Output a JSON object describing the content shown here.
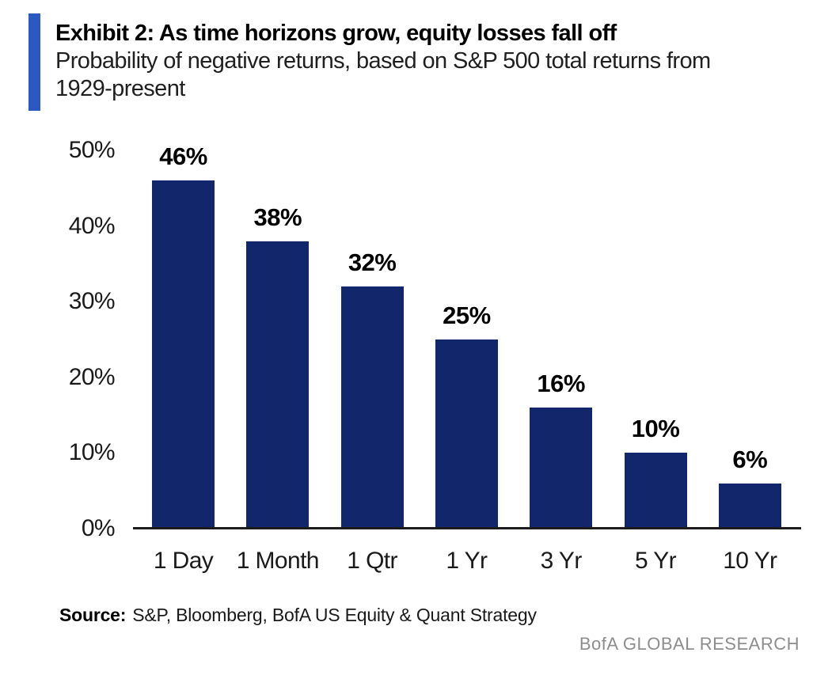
{
  "header": {
    "title": "Exhibit 2: As time horizons grow, equity losses fall off",
    "subtitle_lines": [
      "Probability of negative returns, based on S&P 500 total returns from",
      "1929-present"
    ],
    "accent_color": "#2B59C4"
  },
  "chart_data": {
    "type": "bar",
    "title": "Probability of negative returns, based on S&P 500 total returns from 1929-present",
    "categories": [
      "1 Day",
      "1 Month",
      "1 Qtr",
      "1 Yr",
      "3 Yr",
      "5 Yr",
      "10 Yr"
    ],
    "values": [
      46,
      38,
      32,
      25,
      16,
      10,
      6
    ],
    "data_labels": [
      "46%",
      "38%",
      "32%",
      "25%",
      "16%",
      "10%",
      "6%"
    ],
    "y_ticks": [
      "50%",
      "40%",
      "30%",
      "20%",
      "10%",
      "0%"
    ],
    "ylim": [
      0,
      50
    ],
    "xlabel": "",
    "ylabel": "",
    "grid": false,
    "legend": "none",
    "bar_color": "#12266B",
    "axis_line_color": "#1c1c1c"
  },
  "source": {
    "label": "Source:",
    "text": "S&P, Bloomberg, BofA US Equity & Quant Strategy"
  },
  "footer": {
    "brand": "BofA GLOBAL RESEARCH"
  }
}
